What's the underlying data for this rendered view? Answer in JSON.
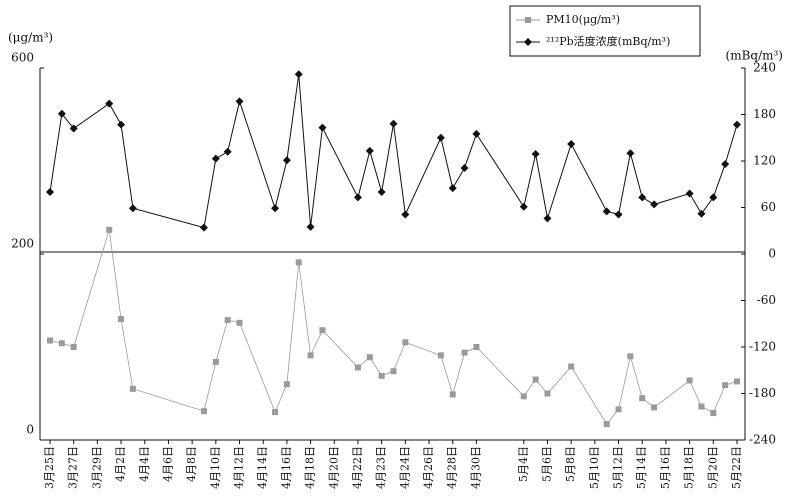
{
  "chart_data": {
    "type": "line",
    "y_axis_label": "(μg/m³)",
    "y2_axis_label": "(mBq/m³)",
    "x": [
      0,
      1,
      2,
      5,
      6,
      7,
      13,
      14,
      15,
      16,
      19,
      20,
      21,
      22,
      23,
      26,
      27,
      28,
      29,
      30,
      33,
      34,
      35,
      36,
      40,
      41,
      42,
      44,
      47,
      48,
      49,
      50,
      51,
      54,
      55,
      56,
      57,
      58
    ],
    "xlim": [
      0,
      58
    ],
    "xticks": [
      {
        "value": 0,
        "label": "3月25日"
      },
      {
        "value": 2,
        "label": "3月27日"
      },
      {
        "value": 4,
        "label": "3月29日"
      },
      {
        "value": 6,
        "label": "4月2日"
      },
      {
        "value": 8,
        "label": "4月4日"
      },
      {
        "value": 10,
        "label": "4月6日"
      },
      {
        "value": 12,
        "label": "4月8日"
      },
      {
        "value": 14,
        "label": "4月10日"
      },
      {
        "value": 16,
        "label": "4月12日"
      },
      {
        "value": 18,
        "label": "4月14日"
      },
      {
        "value": 20,
        "label": "4月16日"
      },
      {
        "value": 22,
        "label": "4月18日"
      },
      {
        "value": 24,
        "label": "4月20日"
      },
      {
        "value": 26,
        "label": "4月22日"
      },
      {
        "value": 28,
        "label": "4月23日"
      },
      {
        "value": 30,
        "label": "4月24日"
      },
      {
        "value": 32,
        "label": "4月26日"
      },
      {
        "value": 34,
        "label": "4月28日"
      },
      {
        "value": 36,
        "label": "4月30日"
      },
      {
        "value": 40,
        "label": "5月4日"
      },
      {
        "value": 42,
        "label": "5月6日"
      },
      {
        "value": 44,
        "label": "5月8日"
      },
      {
        "value": 46,
        "label": "5月10日"
      },
      {
        "value": 48,
        "label": "5月12日"
      },
      {
        "value": 50,
        "label": "5月14日"
      },
      {
        "value": 52,
        "label": "5月16日"
      },
      {
        "value": 54,
        "label": "5月18日"
      },
      {
        "value": 56,
        "label": "5月20日"
      },
      {
        "value": 58,
        "label": "5月22日"
      }
    ],
    "ylim": [
      0,
      600
    ],
    "yticks": [
      0,
      200,
      600
    ],
    "y2lim": [
      -240,
      240
    ],
    "y2ticks": [
      -240,
      -180,
      -120,
      -60,
      0,
      60,
      120,
      180,
      240
    ],
    "series": [
      {
        "name": "PM10(μg/m³)",
        "color": "#9a9a9a",
        "marker": "square",
        "values": [
          107,
          104,
          100,
          252,
          130,
          55,
          31,
          84,
          129,
          126,
          30,
          60,
          191,
          91,
          118,
          78,
          89,
          69,
          74,
          105,
          91,
          49,
          94,
          100,
          47,
          65,
          50,
          79,
          17,
          33,
          90,
          45,
          35,
          64,
          36,
          29,
          59,
          63
        ]
      },
      {
        "name": "²¹²Pb活度浓度(mBq/m³)",
        "color": "#111111",
        "marker": "diamond",
        "axis": "y2",
        "values": [
          80,
          181,
          162,
          194,
          167,
          59,
          34,
          123,
          132,
          197,
          59,
          121,
          232,
          35,
          163,
          73,
          133,
          80,
          168,
          51,
          150,
          85,
          111,
          155,
          61,
          129,
          46,
          142,
          55,
          51,
          130,
          73,
          64,
          78,
          52,
          73,
          116,
          167
        ]
      }
    ]
  }
}
